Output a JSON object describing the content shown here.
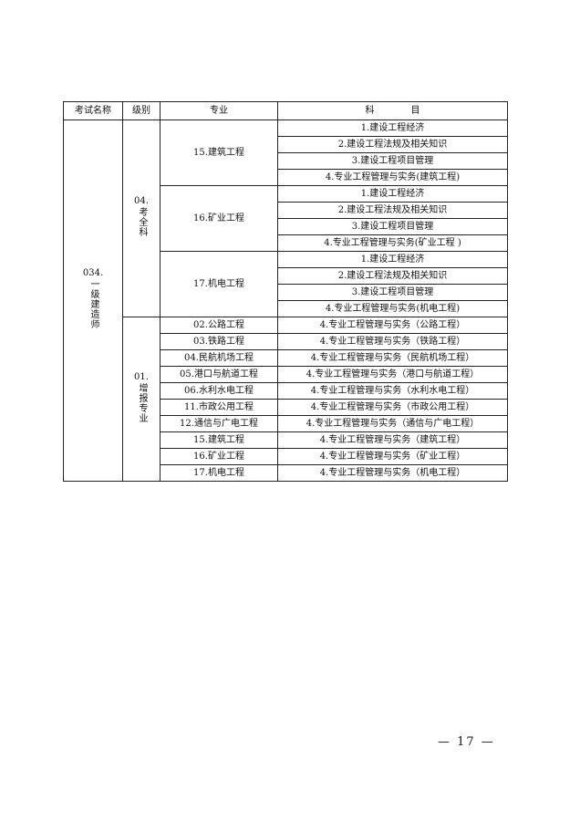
{
  "table": {
    "headers": [
      "考试名称",
      "级别",
      "专业",
      "科　　　　目"
    ],
    "exam_name": {
      "code": "034.",
      "name": "一级建造师"
    },
    "levels": [
      {
        "code": "04.",
        "name": "考全科",
        "majors": [
          {
            "name": "15.建筑工程",
            "subjects": [
              "1.建设工程经济",
              "2.建设工程法规及相关知识",
              "3.建设工程项目管理",
              "4.专业工程管理与实务(建筑工程)"
            ]
          },
          {
            "name": "16.矿业工程",
            "subjects": [
              "1.建设工程经济",
              "2.建设工程法规及相关知识",
              "3.建设工程项目管理",
              "4.专业工程管理与实务(矿业工程 )"
            ]
          },
          {
            "name": "17.机电工程",
            "subjects": [
              "1.建设工程经济",
              "2.建设工程法规及相关知识",
              "3.建设工程项目管理",
              "4.专业工程管理与实务(机电工程)"
            ]
          }
        ]
      },
      {
        "code": "01.",
        "name": "增报专业",
        "majors": [
          {
            "name": "02.公路工程",
            "subjects": [
              "4.专业工程管理与实务（公路工程）"
            ]
          },
          {
            "name": "03.铁路工程",
            "subjects": [
              "4.专业工程管理与实务（铁路工程）"
            ]
          },
          {
            "name": "04.民航机场工程",
            "subjects": [
              "4.专业工程管理与实务（民航机场工程）"
            ]
          },
          {
            "name": "05.港口与航道工程",
            "subjects": [
              "4.专业工程管理与实务（港口与航道工程）"
            ]
          },
          {
            "name": "06.水利水电工程",
            "subjects": [
              "4.专业工程管理与实务（水利水电工程）"
            ]
          },
          {
            "name": "11.市政公用工程",
            "subjects": [
              "4.专业工程管理与实务（市政公用工程）"
            ]
          },
          {
            "name": "12.通信与广电工程",
            "subjects": [
              "4.专业工程管理与实务（通信与广电工程）"
            ]
          },
          {
            "name": "15.建筑工程",
            "subjects": [
              "4.专业工程管理与实务（建筑工程）"
            ]
          },
          {
            "name": "16.矿业工程",
            "subjects": [
              "4.专业工程管理与实务（矿业工程）"
            ]
          },
          {
            "name": "17.机电工程",
            "subjects": [
              "4.专业工程管理与实务（机电工程）"
            ]
          }
        ]
      }
    ]
  },
  "page_number": "— 17 —"
}
